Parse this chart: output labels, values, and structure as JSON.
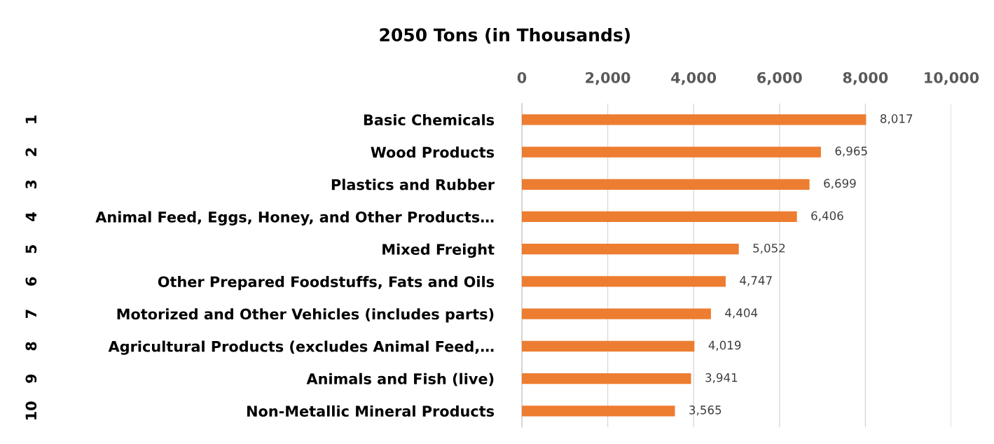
{
  "chart_data": {
    "type": "bar",
    "orientation": "horizontal",
    "title": "2050 Tons (in Thousands)",
    "categories": [
      "Basic Chemicals",
      "Wood Products",
      "Plastics and Rubber",
      "Animal Feed, Eggs, Honey, and Other Products…",
      "Mixed Freight",
      "Other Prepared Foodstuffs, Fats and Oils",
      "Motorized and Other Vehicles (includes parts)",
      "Agricultural Products (excludes Animal Feed,…",
      "Animals and Fish (live)",
      "Non-Metallic Mineral Products"
    ],
    "values": [
      8017,
      6965,
      6699,
      6406,
      5052,
      4747,
      4404,
      4019,
      3941,
      3565
    ],
    "value_labels": [
      "8,017",
      "6,965",
      "6,699",
      "6,406",
      "5,052",
      "4,747",
      "4,404",
      "4,019",
      "3,941",
      "3,565"
    ],
    "color": "#ed7d31",
    "xlim": [
      0,
      10000
    ],
    "xticks": [
      {
        "value": 0,
        "label": "0"
      },
      {
        "value": 2000,
        "label": "2,000"
      },
      {
        "value": 4000,
        "label": "4,000"
      },
      {
        "value": 6000,
        "label": "6,000"
      },
      {
        "value": 8000,
        "label": "8,000"
      },
      {
        "value": 10000,
        "label": "10,000"
      }
    ],
    "grid": "x",
    "annotations": [
      "1",
      "2",
      "3",
      "4",
      "5",
      "6",
      "7",
      "8",
      "9",
      "10"
    ]
  }
}
